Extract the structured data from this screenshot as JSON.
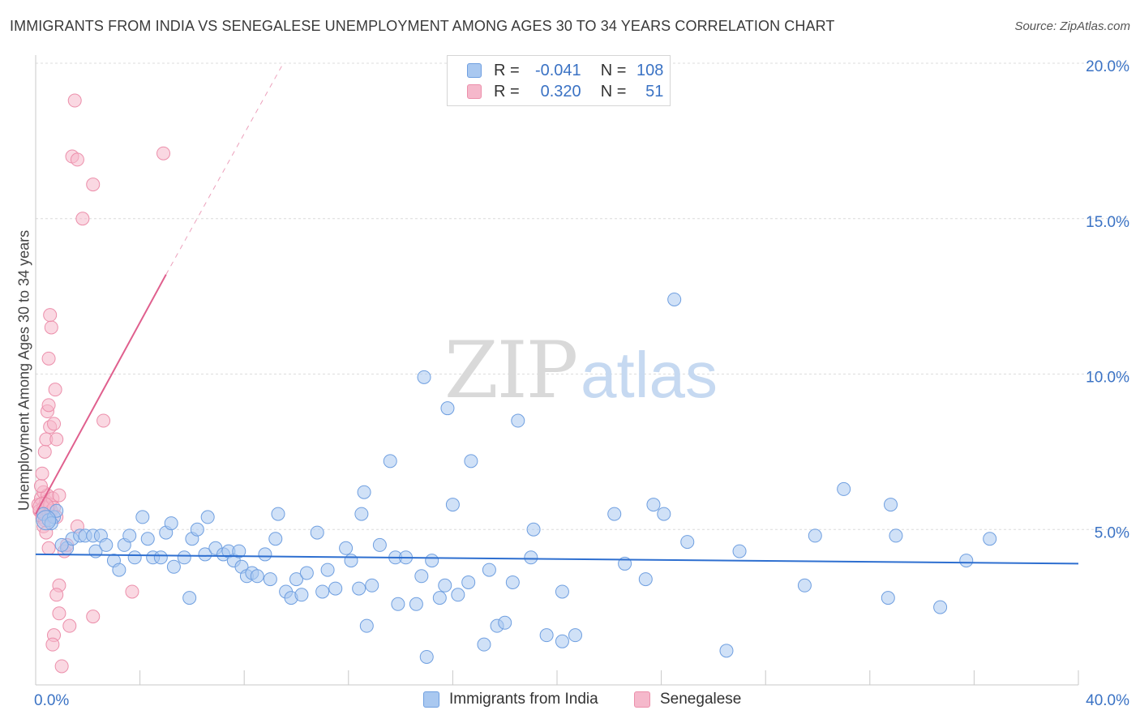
{
  "title": "IMMIGRANTS FROM INDIA VS SENEGALESE UNEMPLOYMENT AMONG AGES 30 TO 34 YEARS CORRELATION CHART",
  "source": "Source: ZipAtlas.com",
  "watermark": {
    "zip": "ZIP",
    "atlas": "atlas"
  },
  "legend": {
    "rows": [
      {
        "r_label": "R =",
        "r_value": "-0.041",
        "n_label": "N =",
        "n_value": "108",
        "color": "#a9c8f0"
      },
      {
        "r_label": "R =",
        "r_value": "0.320",
        "n_label": "N =",
        "n_value": "51",
        "color": "#f5b8cb"
      }
    ]
  },
  "bottom_legend": {
    "india": "Immigrants from India",
    "senegalese": "Senegalese"
  },
  "chart_data": {
    "type": "scatter",
    "title": "IMMIGRANTS FROM INDIA VS SENEGALESE UNEMPLOYMENT AMONG AGES 30 TO 34 YEARS CORRELATION CHART",
    "xlabel": "",
    "ylabel": "Unemployment Among Ages 30 to 34 years",
    "xlim": [
      0,
      40
    ],
    "ylim": [
      0,
      20
    ],
    "x_tick_labels": {
      "min": "0.0%",
      "max": "40.0%"
    },
    "y_ticks": [
      {
        "value": 5,
        "label": "5.0%"
      },
      {
        "value": 10,
        "label": "10.0%"
      },
      {
        "value": 15,
        "label": "15.0%"
      },
      {
        "value": 20,
        "label": "20.0%"
      }
    ],
    "colors": {
      "india_fill": "#a9c8f0",
      "india_stroke": "#6f9fe0",
      "india_line": "#2e6fd0",
      "sen_fill": "#f5b8cb",
      "sen_stroke": "#ec8fab",
      "sen_line": "#e0608e",
      "axis_label": "#3a72c4",
      "grid": "#dcdcdc"
    },
    "series": [
      {
        "name": "Immigrants from India",
        "r": -0.041,
        "n": 108,
        "trend": {
          "x0": 0.0,
          "y0": 4.2,
          "x1": 40.0,
          "y1": 3.9
        },
        "points": [
          [
            0.3,
            5.5
          ],
          [
            0.5,
            5.3
          ],
          [
            0.7,
            5.4
          ],
          [
            1.2,
            4.4
          ],
          [
            1.4,
            4.7
          ],
          [
            1.7,
            4.8
          ],
          [
            1.9,
            4.8
          ],
          [
            2.2,
            4.8
          ],
          [
            2.3,
            4.3
          ],
          [
            2.5,
            4.8
          ],
          [
            2.7,
            4.5
          ],
          [
            3.0,
            4.0
          ],
          [
            3.2,
            3.7
          ],
          [
            3.4,
            4.5
          ],
          [
            3.6,
            4.8
          ],
          [
            3.8,
            4.1
          ],
          [
            4.1,
            5.4
          ],
          [
            4.3,
            4.7
          ],
          [
            4.5,
            4.1
          ],
          [
            4.8,
            4.1
          ],
          [
            5.0,
            4.9
          ],
          [
            5.2,
            5.2
          ],
          [
            5.3,
            3.8
          ],
          [
            5.7,
            4.1
          ],
          [
            5.9,
            2.8
          ],
          [
            6.0,
            4.7
          ],
          [
            6.2,
            5.0
          ],
          [
            6.6,
            5.4
          ],
          [
            6.5,
            4.2
          ],
          [
            6.9,
            4.4
          ],
          [
            7.2,
            4.2
          ],
          [
            7.4,
            4.3
          ],
          [
            7.6,
            4.0
          ],
          [
            7.8,
            4.3
          ],
          [
            7.9,
            3.8
          ],
          [
            8.1,
            3.5
          ],
          [
            8.3,
            3.6
          ],
          [
            8.5,
            3.5
          ],
          [
            8.8,
            4.2
          ],
          [
            9.0,
            3.4
          ],
          [
            9.2,
            4.7
          ],
          [
            9.3,
            5.5
          ],
          [
            9.6,
            3.0
          ],
          [
            9.8,
            2.8
          ],
          [
            10.0,
            3.4
          ],
          [
            10.2,
            2.9
          ],
          [
            10.4,
            3.6
          ],
          [
            10.8,
            4.9
          ],
          [
            11.0,
            3.0
          ],
          [
            11.2,
            3.7
          ],
          [
            11.5,
            3.1
          ],
          [
            11.9,
            4.4
          ],
          [
            12.1,
            4.0
          ],
          [
            12.4,
            3.1
          ],
          [
            12.5,
            5.5
          ],
          [
            12.6,
            6.2
          ],
          [
            12.7,
            1.9
          ],
          [
            12.9,
            3.2
          ],
          [
            13.2,
            4.5
          ],
          [
            13.6,
            7.2
          ],
          [
            13.8,
            4.1
          ],
          [
            13.9,
            2.6
          ],
          [
            14.2,
            4.1
          ],
          [
            14.6,
            2.6
          ],
          [
            14.8,
            3.5
          ],
          [
            14.9,
            9.9
          ],
          [
            15.0,
            0.9
          ],
          [
            15.2,
            4.0
          ],
          [
            15.5,
            2.8
          ],
          [
            15.7,
            3.2
          ],
          [
            15.8,
            8.9
          ],
          [
            16.0,
            5.8
          ],
          [
            16.2,
            2.9
          ],
          [
            16.6,
            3.3
          ],
          [
            16.7,
            7.2
          ],
          [
            17.2,
            1.3
          ],
          [
            17.4,
            3.7
          ],
          [
            17.7,
            1.9
          ],
          [
            18.0,
            2.0
          ],
          [
            18.3,
            3.3
          ],
          [
            18.5,
            8.5
          ],
          [
            19.0,
            4.1
          ],
          [
            19.1,
            5.0
          ],
          [
            19.6,
            1.6
          ],
          [
            20.2,
            3.0
          ],
          [
            20.2,
            1.4
          ],
          [
            20.7,
            1.6
          ],
          [
            22.2,
            5.5
          ],
          [
            22.6,
            3.9
          ],
          [
            23.4,
            3.4
          ],
          [
            23.7,
            5.8
          ],
          [
            24.1,
            5.5
          ],
          [
            24.5,
            12.4
          ],
          [
            25.0,
            4.6
          ],
          [
            26.5,
            1.1
          ],
          [
            27.0,
            4.3
          ],
          [
            29.5,
            3.2
          ],
          [
            29.9,
            4.8
          ],
          [
            31.0,
            6.3
          ],
          [
            32.7,
            2.8
          ],
          [
            32.8,
            5.8
          ],
          [
            33.0,
            4.8
          ],
          [
            34.7,
            2.5
          ],
          [
            35.7,
            4.0
          ],
          [
            36.6,
            4.7
          ],
          [
            0.6,
            5.2
          ],
          [
            1.0,
            4.5
          ],
          [
            0.8,
            5.6
          ]
        ]
      },
      {
        "name": "Senegalese",
        "r": 0.32,
        "n": 51,
        "trend": {
          "x0": 0.0,
          "y0": 5.5,
          "x1": 5.0,
          "y1": 13.2,
          "dash_x1": 9.5,
          "dash_y1": 20.0
        },
        "points": [
          [
            0.1,
            5.8
          ],
          [
            0.15,
            5.6
          ],
          [
            0.2,
            6.0
          ],
          [
            0.25,
            5.4
          ],
          [
            0.3,
            6.2
          ],
          [
            0.3,
            5.7
          ],
          [
            0.35,
            5.3
          ],
          [
            0.4,
            5.9
          ],
          [
            0.45,
            6.1
          ],
          [
            0.5,
            5.5
          ],
          [
            0.55,
            5.8
          ],
          [
            0.6,
            5.6
          ],
          [
            0.65,
            6.0
          ],
          [
            0.7,
            5.7
          ],
          [
            0.3,
            5.1
          ],
          [
            0.4,
            4.9
          ],
          [
            0.5,
            4.4
          ],
          [
            0.2,
            6.4
          ],
          [
            0.25,
            6.8
          ],
          [
            0.35,
            7.5
          ],
          [
            0.4,
            7.9
          ],
          [
            0.45,
            8.8
          ],
          [
            0.5,
            9.0
          ],
          [
            0.55,
            8.3
          ],
          [
            0.7,
            8.4
          ],
          [
            0.8,
            7.9
          ],
          [
            0.75,
            9.5
          ],
          [
            0.5,
            10.5
          ],
          [
            0.6,
            11.5
          ],
          [
            0.55,
            11.9
          ],
          [
            0.9,
            6.1
          ],
          [
            0.8,
            5.4
          ],
          [
            1.1,
            4.3
          ],
          [
            1.2,
            4.5
          ],
          [
            1.6,
            5.1
          ],
          [
            1.5,
            18.8
          ],
          [
            1.4,
            17.0
          ],
          [
            1.6,
            16.9
          ],
          [
            2.2,
            16.1
          ],
          [
            1.8,
            15.0
          ],
          [
            4.9,
            17.1
          ],
          [
            2.6,
            8.5
          ],
          [
            3.7,
            3.0
          ],
          [
            0.9,
            3.2
          ],
          [
            0.8,
            2.9
          ],
          [
            0.9,
            2.3
          ],
          [
            1.3,
            1.9
          ],
          [
            0.7,
            1.6
          ],
          [
            0.65,
            1.3
          ],
          [
            1.0,
            0.6
          ],
          [
            2.2,
            2.2
          ]
        ]
      }
    ]
  }
}
